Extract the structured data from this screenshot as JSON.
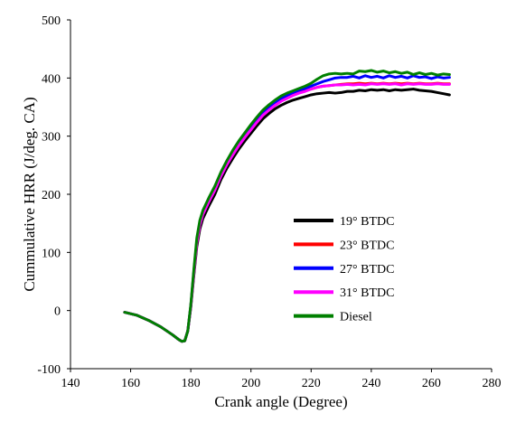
{
  "chart_data": {
    "type": "line",
    "title": "",
    "xlabel": "Crank angle (Degree)",
    "ylabel": "Cummulative HRR (J/deg. CA)",
    "xlim": [
      140,
      280
    ],
    "ylim": [
      -100,
      500
    ],
    "xticks": [
      140,
      160,
      180,
      200,
      220,
      240,
      260,
      280
    ],
    "yticks": [
      -100,
      0,
      100,
      200,
      300,
      400,
      500
    ],
    "grid": false,
    "legend_position": "lower-right",
    "series": [
      {
        "name": "19° BTDC",
        "color": "#000000",
        "points": [
          [
            158,
            -3
          ],
          [
            162,
            -8
          ],
          [
            166,
            -17
          ],
          [
            170,
            -28
          ],
          [
            174,
            -42
          ],
          [
            176,
            -50
          ],
          [
            177,
            -53
          ],
          [
            178,
            -52
          ],
          [
            179,
            -35
          ],
          [
            180,
            5
          ],
          [
            181,
            60
          ],
          [
            182,
            110
          ],
          [
            183,
            140
          ],
          [
            184,
            158
          ],
          [
            186,
            180
          ],
          [
            188,
            200
          ],
          [
            190,
            225
          ],
          [
            192,
            245
          ],
          [
            194,
            262
          ],
          [
            196,
            278
          ],
          [
            198,
            292
          ],
          [
            200,
            305
          ],
          [
            202,
            318
          ],
          [
            204,
            330
          ],
          [
            206,
            339
          ],
          [
            208,
            347
          ],
          [
            210,
            353
          ],
          [
            212,
            358
          ],
          [
            214,
            362
          ],
          [
            216,
            365
          ],
          [
            218,
            368
          ],
          [
            220,
            371
          ],
          [
            222,
            373
          ],
          [
            224,
            374
          ],
          [
            226,
            375
          ],
          [
            228,
            374
          ],
          [
            230,
            375
          ],
          [
            232,
            377
          ],
          [
            234,
            377
          ],
          [
            236,
            379
          ],
          [
            238,
            378
          ],
          [
            240,
            380
          ],
          [
            242,
            379
          ],
          [
            244,
            380
          ],
          [
            246,
            378
          ],
          [
            248,
            380
          ],
          [
            250,
            379
          ],
          [
            252,
            380
          ],
          [
            254,
            381
          ],
          [
            256,
            379
          ],
          [
            258,
            378
          ],
          [
            260,
            377
          ],
          [
            262,
            375
          ],
          [
            264,
            373
          ],
          [
            266,
            371
          ]
        ]
      },
      {
        "name": "23° BTDC",
        "color": "#ff0000",
        "points": [
          [
            158,
            -3
          ],
          [
            162,
            -8
          ],
          [
            166,
            -17
          ],
          [
            170,
            -28
          ],
          [
            174,
            -42
          ],
          [
            176,
            -50
          ],
          [
            177,
            -53
          ],
          [
            178,
            -52
          ],
          [
            179,
            -35
          ],
          [
            180,
            8
          ],
          [
            181,
            65
          ],
          [
            182,
            118
          ],
          [
            183,
            148
          ],
          [
            184,
            166
          ],
          [
            186,
            188
          ],
          [
            188,
            208
          ],
          [
            190,
            232
          ],
          [
            192,
            252
          ],
          [
            194,
            269
          ],
          [
            196,
            285
          ],
          [
            198,
            299
          ],
          [
            200,
            312
          ],
          [
            202,
            325
          ],
          [
            204,
            337
          ],
          [
            206,
            346
          ],
          [
            208,
            354
          ],
          [
            210,
            361
          ],
          [
            212,
            366
          ],
          [
            214,
            371
          ],
          [
            216,
            375
          ],
          [
            218,
            378
          ],
          [
            220,
            381
          ],
          [
            222,
            384
          ],
          [
            224,
            386
          ],
          [
            226,
            387
          ],
          [
            228,
            388
          ],
          [
            230,
            389
          ],
          [
            232,
            390
          ],
          [
            234,
            390
          ],
          [
            236,
            391
          ],
          [
            238,
            390
          ],
          [
            240,
            391
          ],
          [
            242,
            390
          ],
          [
            244,
            391
          ],
          [
            246,
            390
          ],
          [
            248,
            391
          ],
          [
            250,
            390
          ],
          [
            252,
            391
          ],
          [
            254,
            390
          ],
          [
            256,
            391
          ],
          [
            258,
            390
          ],
          [
            260,
            390
          ],
          [
            262,
            391
          ],
          [
            264,
            390
          ],
          [
            266,
            390
          ]
        ]
      },
      {
        "name": "27° BTDC",
        "color": "#0000ff",
        "points": [
          [
            158,
            -3
          ],
          [
            162,
            -8
          ],
          [
            166,
            -17
          ],
          [
            170,
            -28
          ],
          [
            174,
            -42
          ],
          [
            176,
            -50
          ],
          [
            177,
            -53
          ],
          [
            178,
            -52
          ],
          [
            179,
            -35
          ],
          [
            180,
            8
          ],
          [
            181,
            66
          ],
          [
            182,
            120
          ],
          [
            183,
            150
          ],
          [
            184,
            168
          ],
          [
            186,
            190
          ],
          [
            188,
            210
          ],
          [
            190,
            234
          ],
          [
            192,
            254
          ],
          [
            194,
            272
          ],
          [
            196,
            288
          ],
          [
            198,
            302
          ],
          [
            200,
            316
          ],
          [
            202,
            329
          ],
          [
            204,
            341
          ],
          [
            206,
            350
          ],
          [
            208,
            358
          ],
          [
            210,
            365
          ],
          [
            212,
            370
          ],
          [
            214,
            375
          ],
          [
            216,
            379
          ],
          [
            218,
            382
          ],
          [
            220,
            386
          ],
          [
            222,
            390
          ],
          [
            224,
            394
          ],
          [
            226,
            397
          ],
          [
            228,
            400
          ],
          [
            230,
            401
          ],
          [
            232,
            401
          ],
          [
            234,
            403
          ],
          [
            236,
            400
          ],
          [
            238,
            404
          ],
          [
            240,
            401
          ],
          [
            242,
            403
          ],
          [
            244,
            400
          ],
          [
            246,
            404
          ],
          [
            248,
            401
          ],
          [
            250,
            403
          ],
          [
            252,
            400
          ],
          [
            254,
            404
          ],
          [
            256,
            401
          ],
          [
            258,
            402
          ],
          [
            260,
            399
          ],
          [
            262,
            402
          ],
          [
            264,
            400
          ],
          [
            266,
            401
          ]
        ]
      },
      {
        "name": "31° BTDC",
        "color": "#ff00ff",
        "points": [
          [
            158,
            -3
          ],
          [
            162,
            -8
          ],
          [
            166,
            -17
          ],
          [
            170,
            -28
          ],
          [
            174,
            -42
          ],
          [
            176,
            -50
          ],
          [
            177,
            -53
          ],
          [
            178,
            -52
          ],
          [
            179,
            -35
          ],
          [
            180,
            7
          ],
          [
            181,
            64
          ],
          [
            182,
            117
          ],
          [
            183,
            147
          ],
          [
            184,
            165
          ],
          [
            186,
            187
          ],
          [
            188,
            207
          ],
          [
            190,
            231
          ],
          [
            192,
            251
          ],
          [
            194,
            268
          ],
          [
            196,
            284
          ],
          [
            198,
            298
          ],
          [
            200,
            311
          ],
          [
            202,
            324
          ],
          [
            204,
            336
          ],
          [
            206,
            345
          ],
          [
            208,
            353
          ],
          [
            210,
            360
          ],
          [
            212,
            365
          ],
          [
            214,
            370
          ],
          [
            216,
            374
          ],
          [
            218,
            377
          ],
          [
            220,
            381
          ],
          [
            222,
            384
          ],
          [
            224,
            386
          ],
          [
            226,
            387
          ],
          [
            228,
            388
          ],
          [
            230,
            388
          ],
          [
            232,
            389
          ],
          [
            234,
            388
          ],
          [
            236,
            389
          ],
          [
            238,
            388
          ],
          [
            240,
            390
          ],
          [
            242,
            389
          ],
          [
            244,
            390
          ],
          [
            246,
            389
          ],
          [
            248,
            390
          ],
          [
            250,
            388
          ],
          [
            252,
            390
          ],
          [
            254,
            389
          ],
          [
            256,
            390
          ],
          [
            258,
            389
          ],
          [
            260,
            389
          ],
          [
            262,
            390
          ],
          [
            264,
            389
          ],
          [
            266,
            389
          ]
        ]
      },
      {
        "name": "Diesel",
        "color": "#008000",
        "points": [
          [
            158,
            -3
          ],
          [
            162,
            -8
          ],
          [
            166,
            -17
          ],
          [
            170,
            -28
          ],
          [
            174,
            -42
          ],
          [
            176,
            -50
          ],
          [
            177,
            -53
          ],
          [
            178,
            -52
          ],
          [
            179,
            -35
          ],
          [
            180,
            10
          ],
          [
            181,
            70
          ],
          [
            182,
            125
          ],
          [
            183,
            155
          ],
          [
            184,
            172
          ],
          [
            186,
            194
          ],
          [
            188,
            214
          ],
          [
            190,
            238
          ],
          [
            192,
            258
          ],
          [
            194,
            276
          ],
          [
            196,
            292
          ],
          [
            198,
            306
          ],
          [
            200,
            320
          ],
          [
            202,
            333
          ],
          [
            204,
            345
          ],
          [
            206,
            354
          ],
          [
            208,
            362
          ],
          [
            210,
            369
          ],
          [
            212,
            374
          ],
          [
            214,
            378
          ],
          [
            216,
            382
          ],
          [
            218,
            386
          ],
          [
            220,
            391
          ],
          [
            222,
            398
          ],
          [
            224,
            404
          ],
          [
            226,
            407
          ],
          [
            228,
            408
          ],
          [
            230,
            407
          ],
          [
            232,
            408
          ],
          [
            234,
            407
          ],
          [
            236,
            412
          ],
          [
            238,
            411
          ],
          [
            240,
            413
          ],
          [
            242,
            410
          ],
          [
            244,
            412
          ],
          [
            246,
            409
          ],
          [
            248,
            411
          ],
          [
            250,
            408
          ],
          [
            252,
            410
          ],
          [
            254,
            406
          ],
          [
            256,
            409
          ],
          [
            258,
            406
          ],
          [
            260,
            408
          ],
          [
            262,
            405
          ],
          [
            264,
            407
          ],
          [
            266,
            406
          ]
        ]
      }
    ]
  }
}
